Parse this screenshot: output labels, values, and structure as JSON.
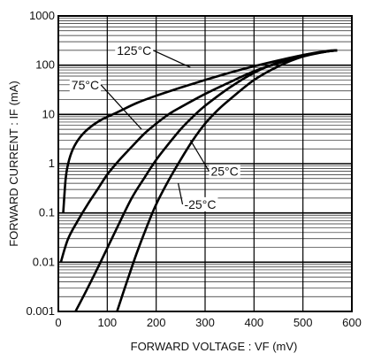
{
  "chart_data": {
    "type": "line",
    "xlabel": "FORWARD VOLTAGE : VF (mV)",
    "ylabel": "FORWARD CURRENT : IF (mA)",
    "xlim": [
      0,
      600
    ],
    "ylim": [
      0.001,
      1000
    ],
    "yscale": "log",
    "grid": true,
    "x_ticks": [
      0,
      100,
      200,
      300,
      400,
      500,
      600
    ],
    "x_tick_labels": [
      "0",
      "100",
      "200",
      "300",
      "400",
      "500",
      "600"
    ],
    "y_ticks": [
      0.001,
      0.01,
      0.1,
      1,
      10,
      100,
      1000
    ],
    "y_tick_labels": [
      "0.001",
      "0.01",
      "0.1",
      "1",
      "10",
      "100",
      "1000"
    ],
    "series": [
      {
        "name": "125°C",
        "x": [
          10,
          12,
          15,
          20,
          30,
          45,
          65,
          90,
          120,
          160,
          200,
          250,
          300,
          350,
          400,
          450,
          500,
          540,
          570
        ],
        "y": [
          0.1,
          0.2,
          0.5,
          1,
          2,
          3.5,
          5.5,
          8,
          11,
          17,
          24,
          35,
          50,
          70,
          95,
          125,
          160,
          185,
          200
        ]
      },
      {
        "name": "75°C",
        "x": [
          5,
          20,
          40,
          60,
          80,
          100,
          125,
          150,
          175,
          200,
          225,
          250,
          300,
          350,
          400,
          450,
          500,
          550,
          570
        ],
        "y": [
          0.01,
          0.03,
          0.07,
          0.15,
          0.3,
          0.6,
          1.2,
          2.2,
          4,
          6.5,
          10,
          14,
          26,
          45,
          75,
          110,
          155,
          190,
          200
        ]
      },
      {
        "name": "25°C",
        "x": [
          35,
          60,
          90,
          120,
          150,
          175,
          200,
          225,
          250,
          275,
          300,
          350,
          400,
          450,
          500,
          550,
          570
        ],
        "y": [
          0.001,
          0.003,
          0.012,
          0.05,
          0.2,
          0.5,
          1.2,
          2.5,
          5,
          9,
          15,
          35,
          70,
          115,
          160,
          195,
          200
        ]
      },
      {
        "name": "-25°C",
        "x": [
          120,
          140,
          160,
          180,
          200,
          225,
          250,
          275,
          300,
          325,
          350,
          400,
          450,
          500,
          550,
          570
        ],
        "y": [
          0.001,
          0.004,
          0.015,
          0.05,
          0.15,
          0.45,
          1.2,
          3,
          6.5,
          12,
          20,
          50,
          95,
          150,
          190,
          200
        ]
      }
    ],
    "annotations": [
      {
        "text": "125°C",
        "x": 155,
        "y": 200,
        "ax": 270,
        "ay": 90
      },
      {
        "text": "75°C",
        "x": 55,
        "y": 40,
        "ax": 170,
        "ay": 5
      },
      {
        "text": "25°C",
        "x": 340,
        "y": 0.7,
        "ax": 270,
        "ay": 3
      },
      {
        "text": "-25°C",
        "x": 290,
        "y": 0.15,
        "ax": 245,
        "ay": 0.4
      }
    ]
  }
}
